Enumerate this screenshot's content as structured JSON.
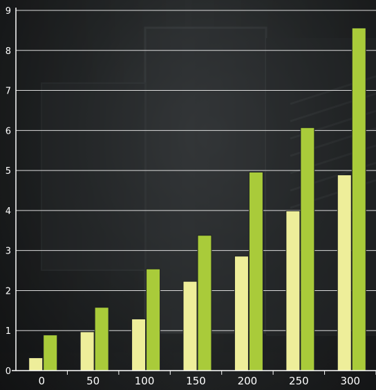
{
  "chart_data": {
    "type": "bar",
    "categories": [
      "0",
      "50",
      "100",
      "150",
      "200",
      "250",
      "300"
    ],
    "series": [
      {
        "values": [
          0.32,
          0.97,
          1.29,
          2.23,
          2.86,
          3.99,
          4.89
        ]
      },
      {
        "values": [
          0.89,
          1.58,
          2.54,
          3.38,
          4.96,
          6.07,
          8.56
        ]
      }
    ],
    "ylim": [
      0,
      9
    ],
    "yticks": [
      "0",
      "1",
      "2",
      "3",
      "4",
      "5",
      "6",
      "7",
      "8",
      "9"
    ],
    "grid": true,
    "title": "",
    "xlabel": "",
    "ylabel": ""
  },
  "colors": {
    "series": [
      "#eeee9a",
      "#a9cb3a"
    ],
    "bar_stroke": "#1e2124",
    "grid": "#dcdcdc",
    "axis": "#ffffff",
    "text": "#ffffff"
  }
}
